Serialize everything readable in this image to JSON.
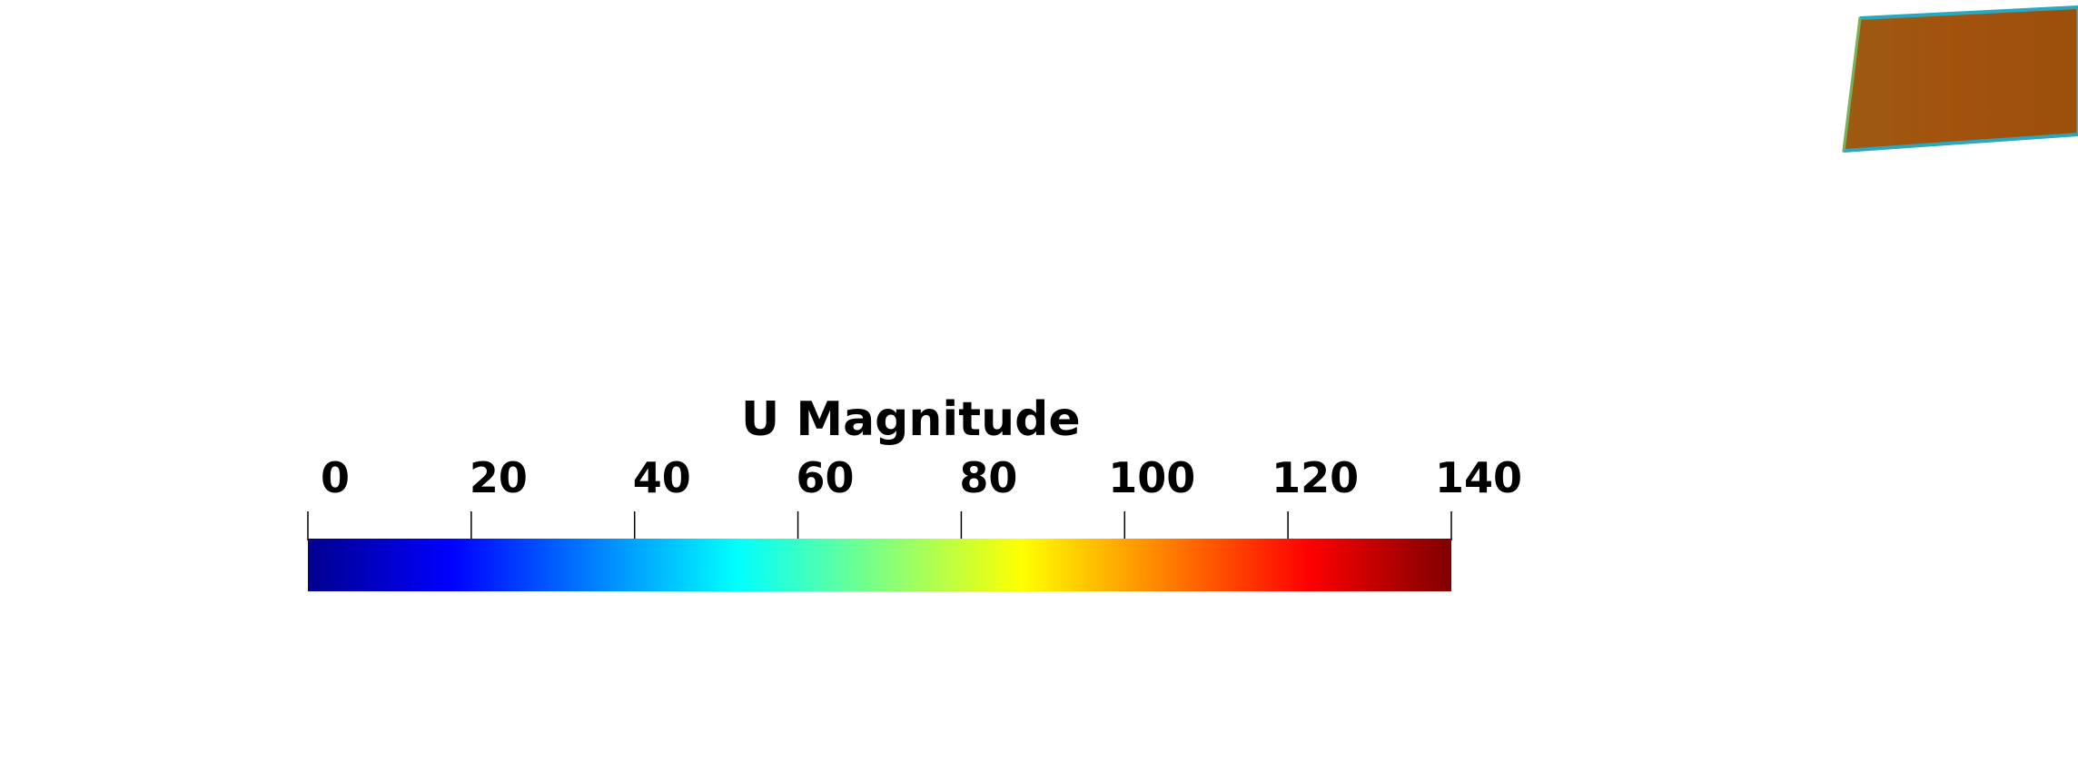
{
  "legend": {
    "title": "U Magnitude",
    "range": [
      0,
      140
    ],
    "ticks": [
      "0",
      "20",
      "40",
      "60",
      "80",
      "100",
      "120",
      "140"
    ],
    "tick_values": [
      0,
      20,
      40,
      60,
      80,
      100,
      120,
      140
    ],
    "colormap_stops": [
      "#00008f",
      "#0000ff",
      "#00ffff",
      "#ffff00",
      "#ff0000",
      "#7f0000"
    ]
  },
  "geometry": {
    "fill_color": "#a04f0a",
    "edge_color": "#3fb0c8"
  }
}
